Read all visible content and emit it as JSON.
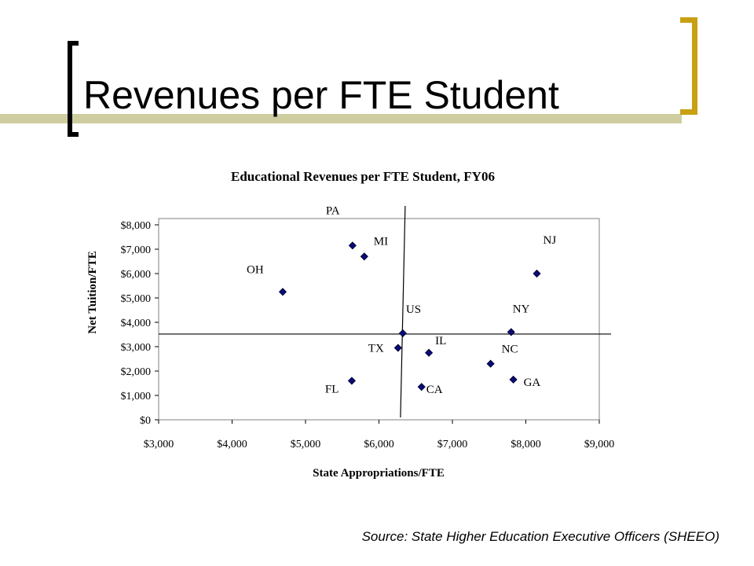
{
  "slide": {
    "title": "Revenues per FTE Student",
    "source": "Source: State Higher Education Executive Officers (SHEEO)"
  },
  "colors": {
    "marker": "#0a0a78",
    "title_bar": "#cdcd9f",
    "bracket_right": "#c9a012",
    "bracket_left": "#000000"
  },
  "chart_data": {
    "type": "scatter",
    "title": "Educational Revenues per FTE Student, FY06",
    "xlabel": "State Appropriations/FTE",
    "ylabel": "Net Tuition/FTE",
    "xlim": [
      3000,
      9000
    ],
    "ylim": [
      0,
      8000
    ],
    "x_ticks": [
      3000,
      4000,
      5000,
      6000,
      7000,
      8000,
      9000
    ],
    "y_ticks": [
      0,
      1000,
      2000,
      3000,
      4000,
      5000,
      6000,
      7000,
      8000
    ],
    "x_tick_labels": [
      "$3,000",
      "$4,000",
      "$5,000",
      "$6,000",
      "$7,000",
      "$8,000",
      "$9,000"
    ],
    "y_tick_labels": [
      "$0",
      "$1,000",
      "$2,000",
      "$3,000",
      "$4,000",
      "$5,000",
      "$6,000",
      "$7,000",
      "$8,000"
    ],
    "grid": false,
    "reference_lines": {
      "x": 6325,
      "y": 3550,
      "label": "US"
    },
    "points": [
      {
        "label": "PA",
        "x": 5640,
        "y": 7150
      },
      {
        "label": "MI",
        "x": 5800,
        "y": 6700
      },
      {
        "label": "OH",
        "x": 4690,
        "y": 5250
      },
      {
        "label": "NJ",
        "x": 8150,
        "y": 6000
      },
      {
        "label": "US",
        "x": 6325,
        "y": 3550
      },
      {
        "label": "NY",
        "x": 7800,
        "y": 3600
      },
      {
        "label": "TX",
        "x": 6260,
        "y": 2950
      },
      {
        "label": "IL",
        "x": 6680,
        "y": 2750
      },
      {
        "label": "NC",
        "x": 7520,
        "y": 2300
      },
      {
        "label": "GA",
        "x": 7830,
        "y": 1650
      },
      {
        "label": "FL",
        "x": 5630,
        "y": 1600
      },
      {
        "label": "CA",
        "x": 6580,
        "y": 1350
      }
    ]
  }
}
